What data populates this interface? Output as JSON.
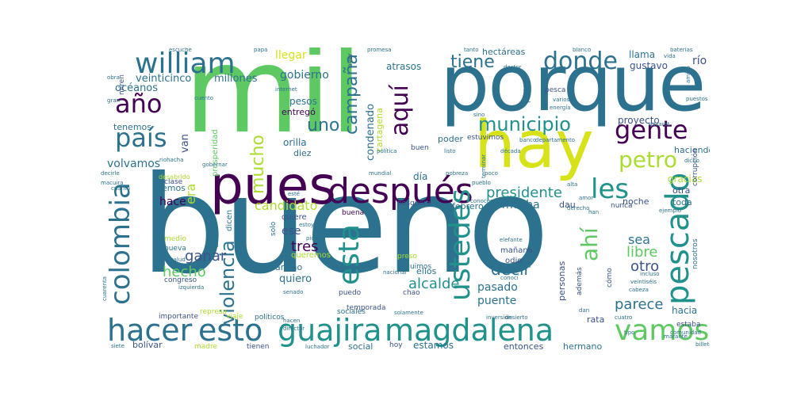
{
  "palette": {
    "green": "#5ec962",
    "teal": "#21918c",
    "steel": "#2c728e",
    "yellow": "#d8e219",
    "purple": "#440154",
    "indigo": "#3b528b",
    "lime": "#addc30",
    "cyan": "#1fa187"
  },
  "cloud": {
    "mil": "mil",
    "bueno": "bueno",
    "porque": "porque",
    "hay": "hay",
    "pues": "pues",
    "despues": "después",
    "magdalena": "magdalena",
    "guajira": "guajira",
    "william": "william",
    "colombia": "colombia",
    "pescado": "pescado",
    "ustedes": "ustedes",
    "hacer": "hacer",
    "esto": "esto",
    "donde": "donde",
    "gente": "gente",
    "pais": "país",
    "ano": "año",
    "aqui": "aquí",
    "esta": "esta",
    "vamos": "vamos",
    "les": "les",
    "municipio": "municipio",
    "petro": "petro",
    "violencia": "violencia",
    "ahi": "ahí",
    "tiene": "tiene",
    "uno": "uno",
    "mucho": "mucho",
    "campana": "campaña",
    "presidente": "presidente",
    "decir": "decir",
    "alcalde": "alcalde",
    "candidato": "candidato",
    "otro": "otro",
    "sea": "sea",
    "parece": "parece",
    "hecho": "hecho",
    "libre": "libre",
    "ganar": "ganar",
    "tres": "tres",
    "gobierno": "gobierno",
    "llegar": "llegar",
    "oceanos": "océanos",
    "veinticinco": "veinticinco",
    "millones": "millones",
    "volvamos": "volvamos",
    "van": "van",
    "era": "era",
    "hace": "hace",
    "hemos": "hemos",
    "mucha": "mucha",
    "puente": "puente",
    "pasado": "pasado",
    "hacia": "hacia",
    "ese": "ese",
    "quiero": "quiero",
    "condenado": "condenado",
    "hectareas": "hectáreas",
    "llama": "llama",
    "gustavo": "gustavo",
    "rio": "río",
    "haciendo": "haciendo",
    "gracias": "gracias",
    "proyecto": "proyecto",
    "tenemos": "tenemos",
    "pesos": "pesos",
    "atrasos": "atrasos",
    "entrego": "entregó",
    "orilla": "orilla",
    "diez": "diez",
    "cartagena": "cartagena",
    "dia": "día",
    "febrero": "febrero",
    "poder": "poder",
    "noche": "noche",
    "otra": "otra",
    "toda": "toda",
    "nunca": "nunca",
    "dau": "dau",
    "buena": "buena",
    "quiere": "quiere",
    "dicen": "dicen",
    "solo": "solo",
    "queremos": "queremos",
    "camino": "camino",
    "ellos": "ellos",
    "preso": "preso",
    "seguimos": "seguimos",
    "manana": "mañana",
    "odio": "odio",
    "personas": "personas",
    "entonces": "entonces",
    "hermano": "hermano",
    "estamos": "estamos",
    "hoy": "hoy",
    "social": "social",
    "tienen": "tienen",
    "madre": "madre",
    "bolivar": "bolívar",
    "importante": "importante",
    "viaje": "viaje",
    "represa": "represa",
    "politicos": "políticos",
    "temporada": "temporada",
    "sociales": "sociales",
    "medio": "medio",
    "nueva": "nueva",
    "congreso": "congreso",
    "clase": "clase",
    "prosperidad": "prosperidad",
    "estuvimos": "estuvimos",
    "pesquera": "pesquera",
    "buen": "buen",
    "periodo": "periodo",
    "pesca": "pesca",
    "nosotros": "nosotros",
    "corrupcion": "corrupción",
    "miren": "miren",
    "estaba": "estaba",
    "como": "cómo",
    "ademas": "además",
    "chao": "chao",
    "puedo": "puedo",
    "rata": "rata",
    "desabrido": "desabrido",
    "ayer": "ayer",
    "escuche": "escuché",
    "promesa": "promesa",
    "tanto": "tanto",
    "blanco": "blanco",
    "baterias": "baterías",
    "vida": "vida",
    "amigo": "amigo",
    "obra": "obra",
    "gran": "gran",
    "internet": "internet",
    "cuento": "cuento",
    "sino": "sino",
    "varios": "varios",
    "energia": "energía",
    "puestos": "puestos",
    "nazaret": "nazaret",
    "banco": "banco",
    "departamento": "departamento",
    "politica": "política",
    "listo": "listo",
    "decada": "década",
    "dicho": "dicho",
    "riohacha": "riohacha",
    "decirle": "decirle",
    "macuira": "macuira",
    "gobernar": "gobernar",
    "mundial": "mundial",
    "pobreza": "pobreza",
    "terminar": "terminar",
    "poco": "poco",
    "pueblo": "pueblo",
    "conocen": "conocen",
    "amor": "amor",
    "han": "han",
    "alta": "alta",
    "derecho": "derecho",
    "ejemplo": "ejemplo",
    "incluso": "incluso",
    "veintiseis": "veintiséis",
    "cabeza": "cabeza",
    "tipo": "tipo",
    "comunidad": "comunidad",
    "billete": "billete",
    "siete": "siete",
    "cuarenta": "cuarenta",
    "luchador": "luchador",
    "director": "director",
    "hacen": "hacen",
    "salud": "salud",
    "izquierda": "izquierda",
    "senado": "senado",
    "nacional": "nacional",
    "solamente": "solamente",
    "inversion": "inversión",
    "desierto": "desierto",
    "conoci": "conocí",
    "elefante": "elefante",
    "dan": "dan",
    "cuatro": "cuatro",
    "marante": "marante",
    "papa": "papá",
    "doctor": "doctor",
    "cual": "cual",
    "pico": "pico",
    "estoy": "estoy",
    "este": "esté",
    "cuanto": "cuanto"
  }
}
